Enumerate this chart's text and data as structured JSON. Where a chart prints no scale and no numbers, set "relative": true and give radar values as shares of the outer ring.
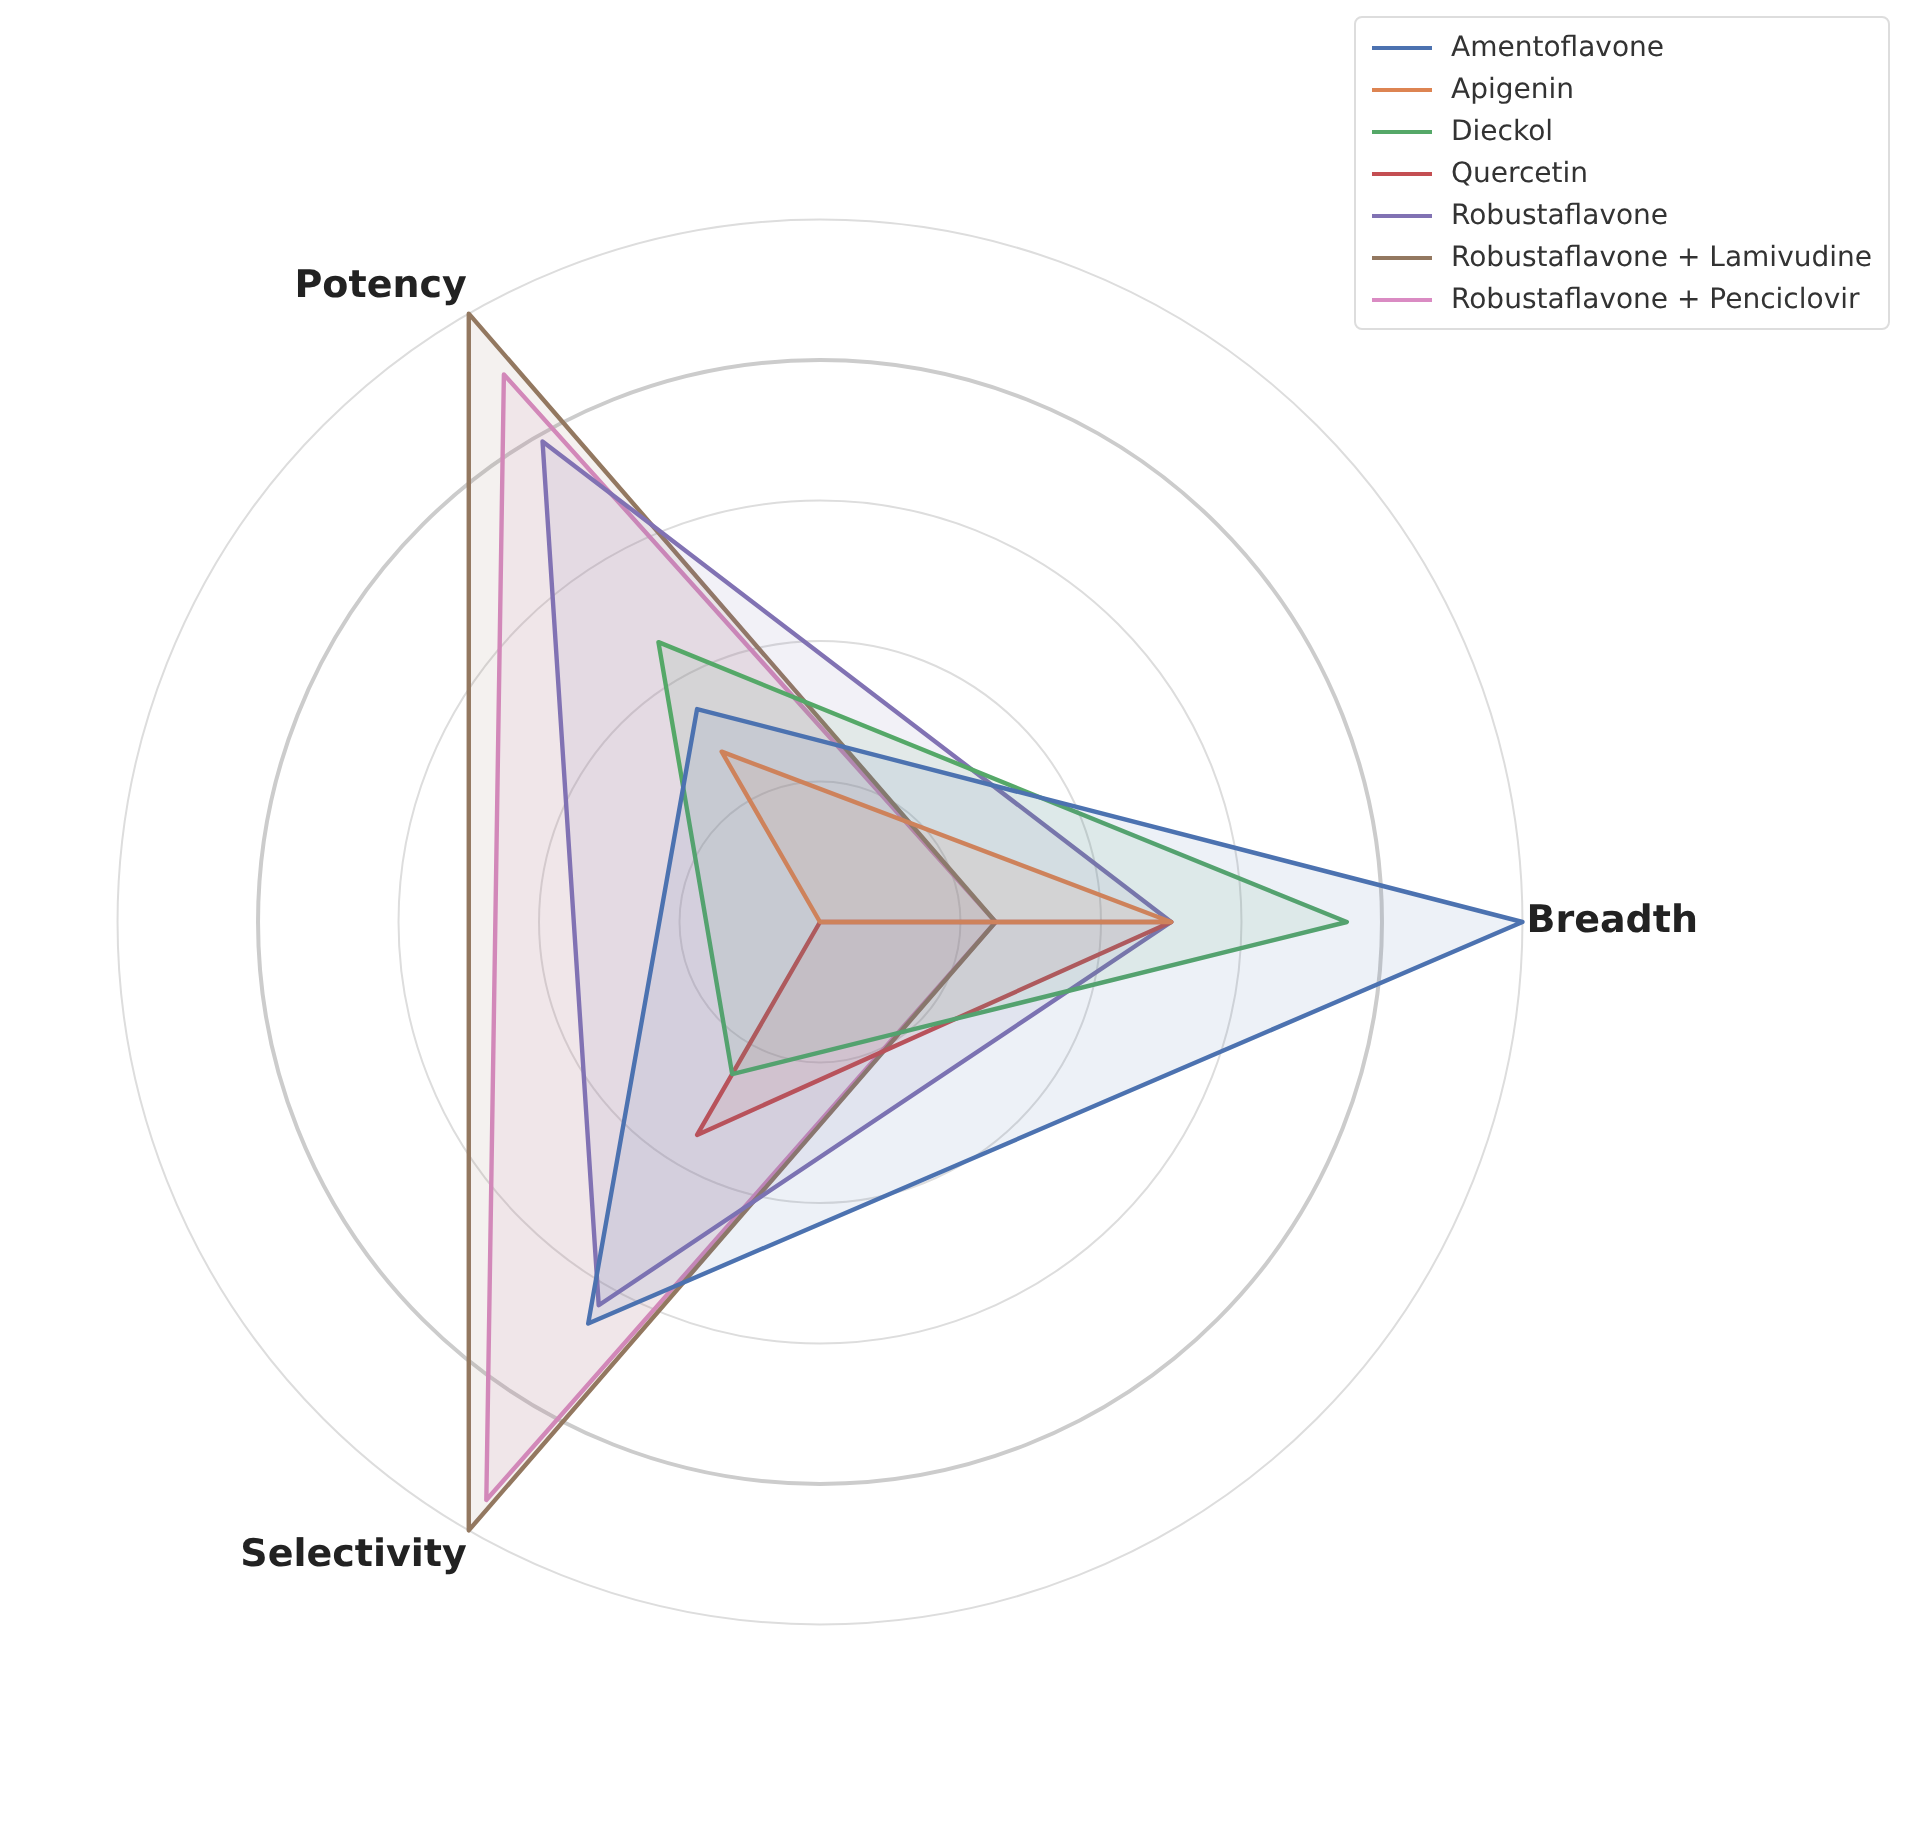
{
  "chart_data": {
    "type": "radar",
    "relative": true,
    "categories": [
      "Breadth",
      "Selectivity",
      "Potency"
    ],
    "grid": true,
    "legend": "top right",
    "marker": "none",
    "series": [
      {
        "name": "Amentoflavone",
        "color": "#4c72b0",
        "values": [
          1.0,
          0.66,
          0.35
        ]
      },
      {
        "name": "Apigenin",
        "color": "#dd8452",
        "values": [
          0.5,
          0,
          0.28
        ]
      },
      {
        "name": "Dieckol",
        "color": "#55a868",
        "values": [
          0.75,
          0.25,
          0.46
        ]
      },
      {
        "name": "Quercetin",
        "color": "#c44e52",
        "values": [
          0.5,
          0.35,
          0
        ]
      },
      {
        "name": "Robustaflavone",
        "color": "#8172b3",
        "values": [
          0.5,
          0.63,
          0.79
        ]
      },
      {
        "name": "Robustaflavone + Lamivudine",
        "color": "#937860",
        "values": [
          0.25,
          1.0,
          1.0
        ]
      },
      {
        "name": "Robustaflavone + Penciclovir",
        "color": "#da8bc3",
        "values": [
          0.25,
          0.95,
          0.9
        ]
      }
    ]
  }
}
